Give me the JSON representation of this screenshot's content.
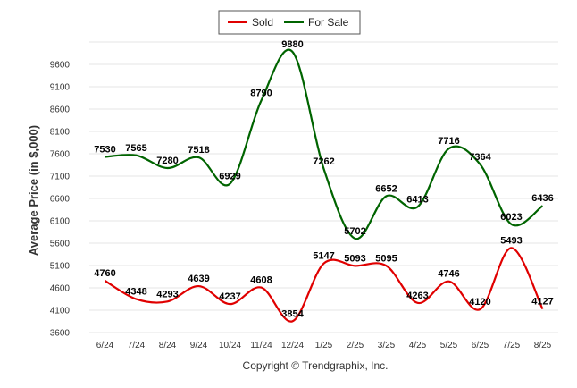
{
  "chart_data": {
    "type": "line",
    "categories": [
      "6/24",
      "7/24",
      "8/24",
      "9/24",
      "10/24",
      "11/24",
      "12/24",
      "1/25",
      "2/25",
      "3/25",
      "4/25",
      "5/25",
      "6/25",
      "7/25",
      "8/25"
    ],
    "series": [
      {
        "name": "Sold",
        "color": "#e00000",
        "values": [
          4760,
          4348,
          4293,
          4639,
          4237,
          4608,
          3854,
          5147,
          5093,
          5095,
          4263,
          4746,
          4120,
          5493,
          4127
        ]
      },
      {
        "name": "For Sale",
        "color": "#006400",
        "values": [
          7530,
          7565,
          7280,
          7518,
          6929,
          8790,
          9880,
          7262,
          5702,
          6652,
          6413,
          7716,
          7364,
          6023,
          6436
        ]
      }
    ],
    "ylabel": "Average Price (in $,000)",
    "yticks": [
      3600,
      4100,
      4600,
      5100,
      5600,
      6100,
      6600,
      7100,
      7600,
      8100,
      8600,
      9100,
      9600
    ],
    "ylim": [
      3600,
      10100
    ],
    "grid": true,
    "legend": "top-center"
  },
  "footer": "Copyright © Trendgraphix, Inc."
}
